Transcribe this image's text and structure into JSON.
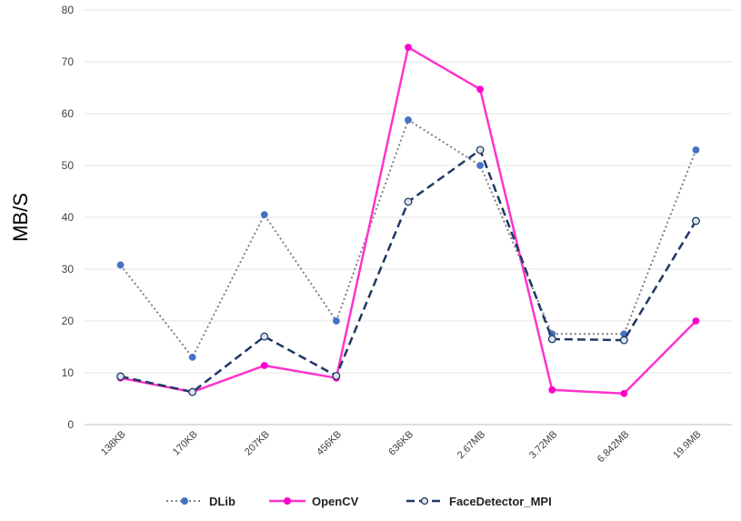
{
  "chart_data": {
    "type": "line",
    "title": "",
    "xlabel": "",
    "ylabel": "MB/S",
    "ylim": [
      0,
      80
    ],
    "yticks": [
      0,
      10,
      20,
      30,
      40,
      50,
      60,
      70,
      80
    ],
    "grid": true,
    "legend_position": "bottom",
    "categories": [
      "138KB",
      "170KB",
      "207KB",
      "456KB",
      "636KB",
      "2.67MB",
      "3.72MB",
      "6.842MB",
      "19.9MB"
    ],
    "series": [
      {
        "name": "DLib",
        "color": "#4472C4",
        "line_color": "#808080",
        "style": "dotted",
        "values": [
          30.8,
          13,
          40.5,
          20,
          58.8,
          50,
          17.5,
          17.5,
          53
        ]
      },
      {
        "name": "OpenCV",
        "color": "#FF00CC",
        "line_color": "#FF33CC",
        "style": "solid",
        "values": [
          9,
          6.3,
          11.4,
          9,
          72.8,
          64.7,
          6.7,
          6,
          20
        ]
      },
      {
        "name": "FaceDetector_MPI",
        "color": "#1F3864",
        "line_color": "#1F3864",
        "style": "dashed",
        "values": [
          9.3,
          6.3,
          17,
          9.4,
          43,
          53,
          16.5,
          16.3,
          39.3
        ]
      }
    ]
  }
}
